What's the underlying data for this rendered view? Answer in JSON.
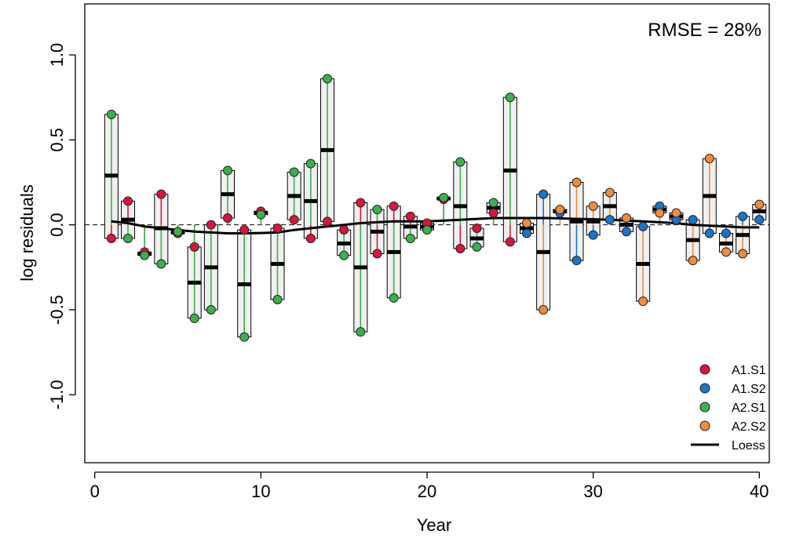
{
  "chart_data": {
    "type": "scatter",
    "xlabel": "Year",
    "ylabel": "log residuals",
    "xlim": [
      -0.6,
      40.6
    ],
    "ylim": [
      -1.4,
      1.3
    ],
    "xticks": [
      0,
      10,
      20,
      30,
      40
    ],
    "yticks": [
      -1.0,
      -0.5,
      0.0,
      0.5,
      1.0
    ],
    "xtick_labels": [
      "0",
      "10",
      "20",
      "30",
      "40"
    ],
    "ytick_labels": [
      "-1.0",
      "-0.5",
      "0.0",
      "0.5",
      "1.0"
    ],
    "annotation": "RMSE = 28%",
    "legend_position": "bottom-right",
    "series": [
      {
        "name": "A1.S1",
        "color": "#dc143c",
        "points": [
          [
            1,
            -0.08
          ],
          [
            2,
            0.14
          ],
          [
            3,
            -0.16
          ],
          [
            4,
            0.18
          ],
          [
            5,
            -0.05
          ],
          [
            6,
            -0.13
          ],
          [
            7,
            0.0
          ],
          [
            8,
            0.04
          ],
          [
            9,
            -0.03
          ],
          [
            10,
            0.08
          ],
          [
            11,
            -0.02
          ],
          [
            12,
            0.03
          ],
          [
            13,
            -0.08
          ],
          [
            14,
            0.02
          ],
          [
            15,
            -0.03
          ],
          [
            16,
            0.13
          ],
          [
            17,
            -0.17
          ],
          [
            18,
            0.11
          ],
          [
            19,
            0.05
          ],
          [
            20,
            0.01
          ],
          [
            21,
            0.15
          ],
          [
            22,
            -0.14
          ],
          [
            23,
            -0.02
          ],
          [
            24,
            0.07
          ],
          [
            25,
            -0.1
          ]
        ]
      },
      {
        "name": "A1.S2",
        "color": "#1874cd",
        "points": [
          [
            26,
            -0.05
          ],
          [
            27,
            0.18
          ],
          [
            28,
            0.07
          ],
          [
            29,
            -0.21
          ],
          [
            30,
            -0.06
          ],
          [
            31,
            0.03
          ],
          [
            32,
            -0.04
          ],
          [
            33,
            -0.01
          ],
          [
            34,
            0.11
          ],
          [
            35,
            0.03
          ],
          [
            36,
            0.03
          ],
          [
            37,
            -0.05
          ],
          [
            38,
            -0.05
          ],
          [
            39,
            0.05
          ],
          [
            40,
            0.03
          ]
        ]
      },
      {
        "name": "A2.S1",
        "color": "#3cb04c",
        "points": [
          [
            1,
            0.65
          ],
          [
            2,
            -0.08
          ],
          [
            3,
            -0.18
          ],
          [
            4,
            -0.23
          ],
          [
            5,
            -0.04
          ],
          [
            6,
            -0.55
          ],
          [
            7,
            -0.5
          ],
          [
            8,
            0.32
          ],
          [
            9,
            -0.66
          ],
          [
            10,
            0.06
          ],
          [
            11,
            -0.44
          ],
          [
            12,
            0.31
          ],
          [
            13,
            0.36
          ],
          [
            14,
            0.86
          ],
          [
            15,
            -0.18
          ],
          [
            16,
            -0.63
          ],
          [
            17,
            0.09
          ],
          [
            18,
            -0.43
          ],
          [
            19,
            -0.08
          ],
          [
            20,
            -0.03
          ],
          [
            21,
            0.16
          ],
          [
            22,
            0.37
          ],
          [
            23,
            -0.13
          ],
          [
            24,
            0.13
          ],
          [
            25,
            0.75
          ]
        ]
      },
      {
        "name": "A2.S2",
        "color": "#f08c3c",
        "points": [
          [
            26,
            0.01
          ],
          [
            27,
            -0.5
          ],
          [
            28,
            0.09
          ],
          [
            29,
            0.25
          ],
          [
            30,
            0.11
          ],
          [
            31,
            0.19
          ],
          [
            32,
            0.04
          ],
          [
            33,
            -0.45
          ],
          [
            34,
            0.07
          ],
          [
            35,
            0.07
          ],
          [
            36,
            -0.21
          ],
          [
            37,
            0.39
          ],
          [
            38,
            -0.16
          ],
          [
            39,
            -0.17
          ],
          [
            40,
            0.12
          ]
        ]
      },
      {
        "name": "Loess",
        "color": "#000000",
        "points": [
          [
            1,
            0.02
          ],
          [
            2,
            0.01
          ],
          [
            3,
            -0.01
          ],
          [
            4,
            -0.02
          ],
          [
            5,
            -0.03
          ],
          [
            6,
            -0.04
          ],
          [
            7,
            -0.045
          ],
          [
            8,
            -0.05
          ],
          [
            9,
            -0.05
          ],
          [
            10,
            -0.048
          ],
          [
            11,
            -0.045
          ],
          [
            12,
            -0.03
          ],
          [
            13,
            -0.02
          ],
          [
            14,
            -0.01
          ],
          [
            15,
            0.0
          ],
          [
            16,
            0.01
          ],
          [
            17,
            0.015
          ],
          [
            18,
            0.02
          ],
          [
            19,
            0.02
          ],
          [
            20,
            0.02
          ],
          [
            21,
            0.025
          ],
          [
            22,
            0.03
          ],
          [
            23,
            0.035
          ],
          [
            24,
            0.04
          ],
          [
            25,
            0.04
          ],
          [
            26,
            0.04
          ],
          [
            27,
            0.04
          ],
          [
            28,
            0.038
          ],
          [
            29,
            0.035
          ],
          [
            30,
            0.033
          ],
          [
            31,
            0.03
          ],
          [
            32,
            0.025
          ],
          [
            33,
            0.02
          ],
          [
            34,
            0.015
          ],
          [
            35,
            0.01
          ],
          [
            36,
            0.0
          ],
          [
            37,
            -0.005
          ],
          [
            38,
            -0.01
          ],
          [
            39,
            -0.015
          ],
          [
            40,
            -0.015
          ]
        ]
      }
    ],
    "boxes": [
      [
        1,
        -0.08,
        0.65,
        0.29
      ],
      [
        2,
        -0.08,
        0.14,
        0.03
      ],
      [
        3,
        -0.18,
        -0.16,
        -0.17
      ],
      [
        4,
        -0.23,
        0.18,
        -0.02
      ],
      [
        5,
        -0.05,
        -0.04,
        -0.045
      ],
      [
        6,
        -0.55,
        -0.13,
        -0.34
      ],
      [
        7,
        -0.5,
        0.0,
        -0.25
      ],
      [
        8,
        0.04,
        0.32,
        0.18
      ],
      [
        9,
        -0.66,
        -0.03,
        -0.35
      ],
      [
        10,
        0.06,
        0.08,
        0.07
      ],
      [
        11,
        -0.44,
        -0.02,
        -0.23
      ],
      [
        12,
        0.03,
        0.31,
        0.17
      ],
      [
        13,
        -0.08,
        0.36,
        0.14
      ],
      [
        14,
        0.02,
        0.86,
        0.44
      ],
      [
        15,
        -0.18,
        -0.03,
        -0.11
      ],
      [
        16,
        -0.63,
        0.13,
        -0.25
      ],
      [
        17,
        -0.17,
        0.09,
        -0.04
      ],
      [
        18,
        -0.43,
        0.11,
        -0.16
      ],
      [
        19,
        -0.08,
        0.05,
        -0.01
      ],
      [
        20,
        -0.03,
        0.01,
        -0.01
      ],
      [
        21,
        0.15,
        0.16,
        0.155
      ],
      [
        22,
        -0.14,
        0.37,
        0.11
      ],
      [
        23,
        -0.13,
        -0.02,
        -0.08
      ],
      [
        24,
        0.07,
        0.13,
        0.1
      ],
      [
        25,
        -0.1,
        0.75,
        0.32
      ],
      [
        26,
        -0.05,
        0.01,
        -0.02
      ],
      [
        27,
        -0.5,
        0.18,
        -0.16
      ],
      [
        28,
        0.07,
        0.09,
        0.08
      ],
      [
        29,
        -0.21,
        0.25,
        0.02
      ],
      [
        30,
        -0.06,
        0.11,
        0.02
      ],
      [
        31,
        0.03,
        0.19,
        0.11
      ],
      [
        32,
        -0.04,
        0.04,
        0.0
      ],
      [
        33,
        -0.45,
        -0.01,
        -0.23
      ],
      [
        34,
        0.07,
        0.11,
        0.09
      ],
      [
        35,
        0.03,
        0.07,
        0.05
      ],
      [
        36,
        -0.21,
        0.03,
        -0.09
      ],
      [
        37,
        -0.05,
        0.39,
        0.17
      ],
      [
        38,
        -0.16,
        -0.05,
        -0.11
      ],
      [
        39,
        -0.17,
        0.05,
        -0.06
      ],
      [
        40,
        0.03,
        0.12,
        0.08
      ]
    ]
  }
}
